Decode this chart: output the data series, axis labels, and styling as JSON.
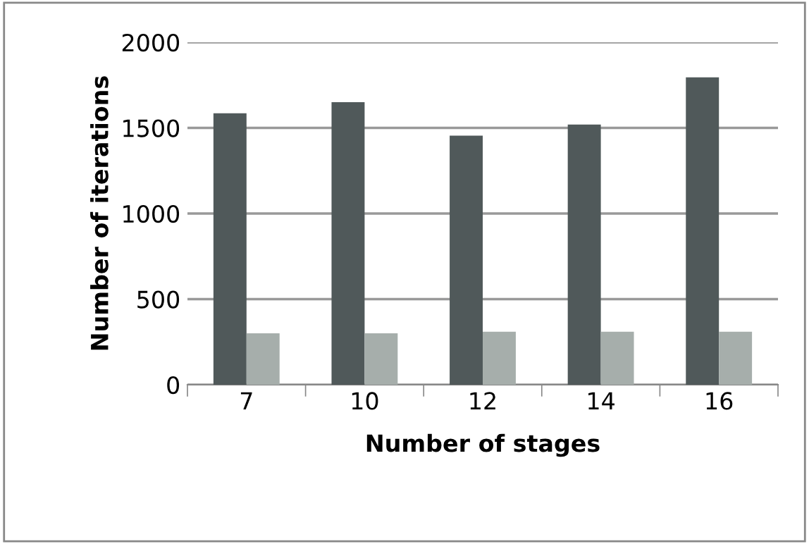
{
  "chart_data": {
    "type": "bar",
    "xlabel": "Number of stages",
    "ylabel": "Number of iterations",
    "categories": [
      "7",
      "10",
      "12",
      "14",
      "16"
    ],
    "series": [
      {
        "color": "#50595a",
        "values": [
          1585,
          1650,
          1455,
          1520,
          1795
        ]
      },
      {
        "color": "#a6aeab",
        "values": [
          300,
          300,
          310,
          310,
          310
        ]
      }
    ],
    "ylim": [
      0,
      2000
    ],
    "yticks": [
      0,
      500,
      1000,
      1500,
      2000
    ],
    "grid": "y",
    "legend": false
  }
}
